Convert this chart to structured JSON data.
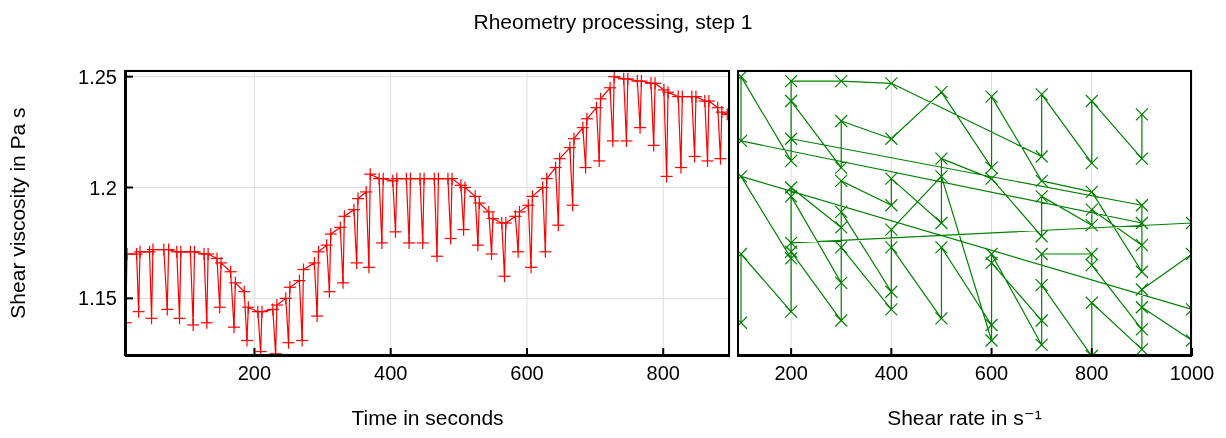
{
  "chart_data": [
    {
      "type": "line",
      "title": "Rheometry processing, step 1",
      "xlabel": "Time in seconds",
      "ylabel": "Shear viscosity in Pa s",
      "xlim": [
        10,
        898
      ],
      "xticks": [
        200,
        400,
        600,
        800
      ],
      "ylim": [
        1.124,
        1.253
      ],
      "yticks": [
        1.15,
        1.2,
        1.25
      ],
      "grid": true,
      "marker": "plus",
      "series": [
        {
          "color": "#ff0000",
          "x": [
            11,
            13,
            27,
            30,
            32,
            46,
            49,
            51,
            67,
            72,
            74,
            86,
            90,
            92,
            106,
            110,
            112,
            126,
            130,
            132,
            145,
            149,
            151,
            165,
            170,
            172,
            185,
            189,
            191,
            205,
            209,
            211,
            227,
            231,
            233,
            246,
            250,
            252,
            266,
            270,
            272,
            288,
            292,
            294,
            306,
            310,
            312,
            326,
            330,
            332,
            346,
            350,
            352,
            364,
            368,
            370,
            383,
            387,
            389,
            403,
            407,
            409,
            423,
            427,
            429,
            443,
            447,
            449,
            464,
            468,
            470,
            484,
            488,
            490,
            503,
            507,
            509,
            524,
            528,
            530,
            544,
            548,
            550,
            563,
            567,
            569,
            583,
            587,
            589,
            602,
            606,
            608,
            623,
            627,
            629,
            642,
            646,
            648,
            663,
            667,
            669,
            682,
            686,
            688,
            702,
            706,
            708,
            722,
            726,
            728,
            742,
            746,
            748,
            762,
            766,
            768,
            782,
            786,
            788,
            801,
            805,
            807,
            822,
            826,
            828,
            842,
            846,
            848,
            861,
            865,
            867,
            880,
            884,
            886,
            894
          ],
          "values": [
            1.139,
            1.17,
            1.17,
            1.144,
            1.171,
            1.171,
            1.141,
            1.172,
            1.172,
            1.145,
            1.172,
            1.171,
            1.141,
            1.171,
            1.171,
            1.138,
            1.171,
            1.17,
            1.139,
            1.17,
            1.168,
            1.146,
            1.166,
            1.162,
            1.137,
            1.157,
            1.153,
            1.131,
            1.146,
            1.144,
            1.126,
            1.144,
            1.145,
            1.125,
            1.147,
            1.15,
            1.13,
            1.155,
            1.158,
            1.131,
            1.163,
            1.166,
            1.142,
            1.171,
            1.174,
            1.153,
            1.179,
            1.182,
            1.157,
            1.187,
            1.19,
            1.166,
            1.195,
            1.198,
            1.164,
            1.206,
            1.204,
            1.175,
            1.204,
            1.203,
            1.18,
            1.204,
            1.204,
            1.175,
            1.204,
            1.204,
            1.175,
            1.204,
            1.204,
            1.169,
            1.204,
            1.204,
            1.177,
            1.204,
            1.201,
            1.181,
            1.2,
            1.196,
            1.174,
            1.193,
            1.189,
            1.17,
            1.186,
            1.184,
            1.16,
            1.184,
            1.187,
            1.171,
            1.189,
            1.192,
            1.164,
            1.196,
            1.2,
            1.171,
            1.204,
            1.209,
            1.183,
            1.213,
            1.218,
            1.192,
            1.222,
            1.227,
            1.209,
            1.231,
            1.236,
            1.212,
            1.24,
            1.245,
            1.221,
            1.25,
            1.249,
            1.221,
            1.249,
            1.248,
            1.227,
            1.248,
            1.247,
            1.219,
            1.247,
            1.244,
            1.205,
            1.243,
            1.241,
            1.209,
            1.241,
            1.241,
            1.214,
            1.241,
            1.239,
            1.212,
            1.239,
            1.236,
            1.213,
            1.234,
            1.233
          ]
        }
      ]
    },
    {
      "type": "line",
      "xlabel": "Shear rate in s⁻¹",
      "xlim": [
        92,
        1000
      ],
      "xticks": [
        200,
        400,
        600,
        800,
        1000
      ],
      "ylim": [
        1.124,
        1.253
      ],
      "yticks": [
        1.15,
        1.2,
        1.25
      ],
      "grid": true,
      "marker": "cross",
      "tick_labels": "x",
      "series": [
        {
          "color": "#008000",
          "x": [
            100,
            100,
            200,
            200,
            300,
            300,
            400,
            400,
            500,
            500,
            600,
            600,
            700,
            700,
            800,
            800,
            900,
            900,
            1000,
            1000,
            100,
            200,
            200,
            300,
            300,
            400,
            400,
            500,
            600,
            600,
            700,
            700,
            800,
            800,
            900,
            900,
            1000,
            1000,
            200,
            200,
            300,
            300,
            400,
            400,
            500,
            500,
            600,
            700,
            700,
            800,
            800,
            900,
            900,
            100,
            100,
            200,
            200,
            300,
            300,
            400,
            500,
            600,
            600,
            700,
            800,
            900,
            900,
            200,
            200,
            300,
            400,
            700,
            700,
            800,
            800,
            900,
            900
          ],
          "values": [
            1.139,
            1.17,
            1.144,
            1.171,
            1.14,
            1.173,
            1.145,
            1.173,
            1.141,
            1.173,
            1.138,
            1.166,
            1.14,
            1.156,
            1.124,
            1.148,
            1.127,
            1.146,
            1.131,
            1.145,
            1.205,
            1.168,
            1.196,
            1.157,
            1.189,
            1.153,
            1.181,
            1.205,
            1.131,
            1.17,
            1.129,
            1.17,
            1.17,
            1.165,
            1.136,
            1.154,
            1.17,
            1.184,
            1.175,
            1.2,
            1.182,
            1.203,
            1.192,
            1.204,
            1.184,
            1.213,
            1.204,
            1.178,
            1.196,
            1.183,
            1.19,
            1.174,
            1.184,
            1.221,
            1.25,
            1.212,
            1.239,
            1.209,
            1.23,
            1.222,
            1.243,
            1.209,
            1.241,
            1.203,
            1.198,
            1.162,
            1.192,
            1.222,
            1.248,
            1.248,
            1.247,
            1.214,
            1.242,
            1.211,
            1.239,
            1.213,
            1.233
          ]
        }
      ]
    }
  ]
}
